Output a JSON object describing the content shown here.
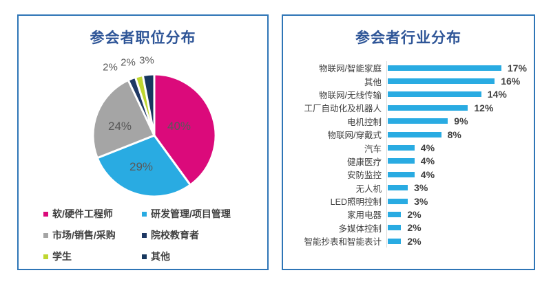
{
  "theme": {
    "panel_border_color": "#2E75B6",
    "title_color": "#2E5597",
    "label_color": "#595959",
    "text_color": "#3F3F3F",
    "axis_line_color": "#D9D9D9",
    "background": "#FFFFFF"
  },
  "chart_data": [
    {
      "type": "pie",
      "title": "参会者职位分布",
      "labels": [
        "软/硬件工程师",
        "研发管理/项目管理",
        "市场/销售/采购",
        "院校教育者",
        "学生",
        "其他"
      ],
      "values": [
        40,
        29,
        24,
        2,
        2,
        3
      ],
      "value_labels": [
        "40%",
        "29%",
        "24%",
        "2%",
        "2%",
        "3%"
      ],
      "colors": [
        "#DB0A7B",
        "#29ABE2",
        "#A5A5A5",
        "#1F3864",
        "#BFD630",
        "#17375E"
      ],
      "start_angle": "top",
      "direction": "clockwise",
      "legend_position": "bottom",
      "slice_gap_color": "#FFFFFF"
    },
    {
      "type": "bar",
      "orientation": "horizontal",
      "title": "参会者行业分布",
      "categories": [
        "物联网/智能家庭",
        "其他",
        "物联网/无线传输",
        "工厂自动化及机器人",
        "电机控制",
        "物联网/穿戴式",
        "汽车",
        "健康医疗",
        "安防监控",
        "无人机",
        "LED照明控制",
        "家用电器",
        "多媒体控制",
        "智能抄表和智能表计"
      ],
      "values": [
        17,
        16,
        14,
        12,
        9,
        8,
        4,
        4,
        4,
        3,
        3,
        2,
        2,
        2
      ],
      "value_labels": [
        "17%",
        "16%",
        "14%",
        "12%",
        "9%",
        "8%",
        "4%",
        "4%",
        "4%",
        "3%",
        "3%",
        "2%",
        "2%",
        "2%"
      ],
      "bar_color": "#29ABE2",
      "xlim": [
        0,
        17
      ],
      "grid": false,
      "legend_position": "none"
    }
  ]
}
